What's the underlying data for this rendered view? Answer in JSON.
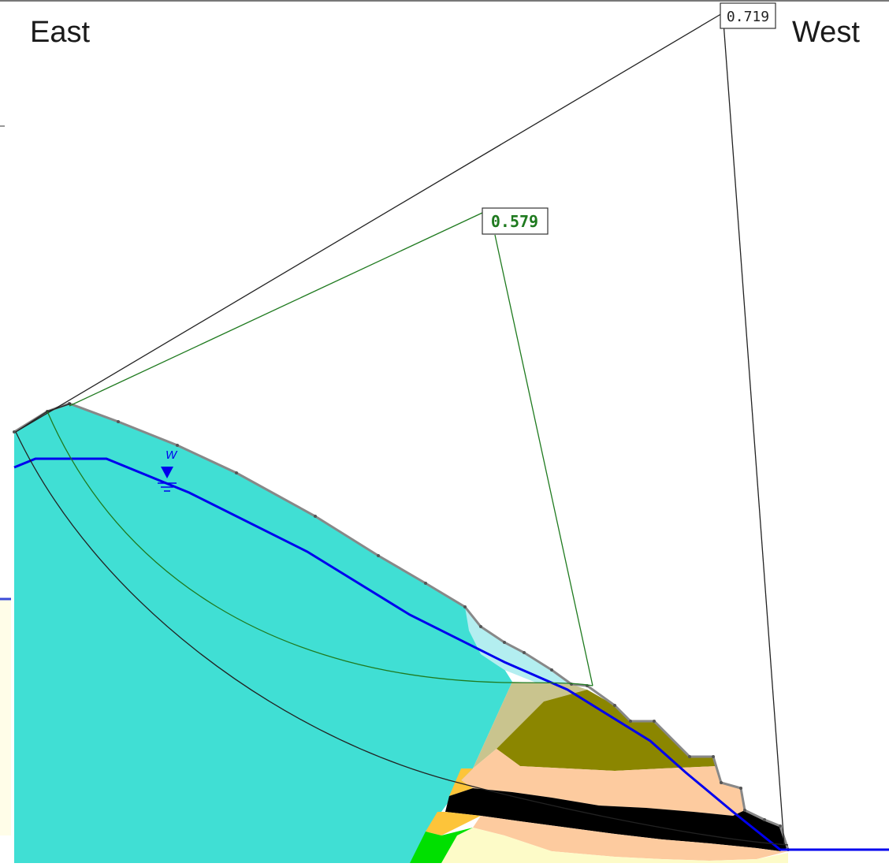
{
  "labels": {
    "left": "East",
    "right": "West"
  },
  "safety_factors": {
    "global": "0.719",
    "critical": "0.579"
  },
  "water_table_marker": "W",
  "colors": {
    "cyan_soil": "#40dfd4",
    "light_cyan_slip": "#b3eef0",
    "olive_soil": "#8b8600",
    "khaki_soil": "#c9c48e",
    "peach_soil": "#fdcb9f",
    "orange_soil": "#fdc43a",
    "black_layer": "#000000",
    "cream_soil": "#fdfbc8",
    "green_soil": "#00e000",
    "water_line": "#0000ee",
    "critical_surface": "#1f7a1f",
    "global_surface": "#222222"
  }
}
